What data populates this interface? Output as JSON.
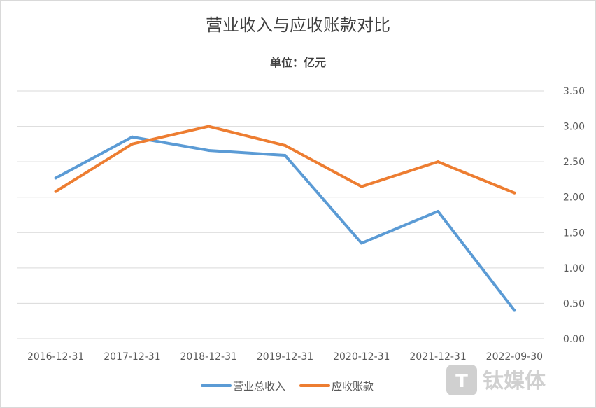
{
  "chart_data": {
    "type": "line",
    "title": "营业收入与应收账款对比",
    "subtitle": "单位：亿元",
    "categories": [
      "2016-12-31",
      "2017-12-31",
      "2018-12-31",
      "2019-12-31",
      "2020-12-31",
      "2021-12-31",
      "2022-09-30"
    ],
    "series": [
      {
        "name": "营业总收入",
        "color": "#5b9bd5",
        "values": [
          2.27,
          2.85,
          2.66,
          2.59,
          1.35,
          1.8,
          0.4
        ]
      },
      {
        "name": "应收账款",
        "color": "#ed7d31",
        "values": [
          2.08,
          2.75,
          3.0,
          2.73,
          2.15,
          2.5,
          2.06
        ]
      }
    ],
    "ylim": [
      0,
      3.5
    ],
    "yticks": [
      "0.00",
      "0.50",
      "1.00",
      "1.50",
      "2.00",
      "2.50",
      "3.00",
      "3.50"
    ],
    "yaxis_position": "right",
    "grid": true,
    "legend_position": "bottom"
  },
  "watermark": "钛媒体"
}
